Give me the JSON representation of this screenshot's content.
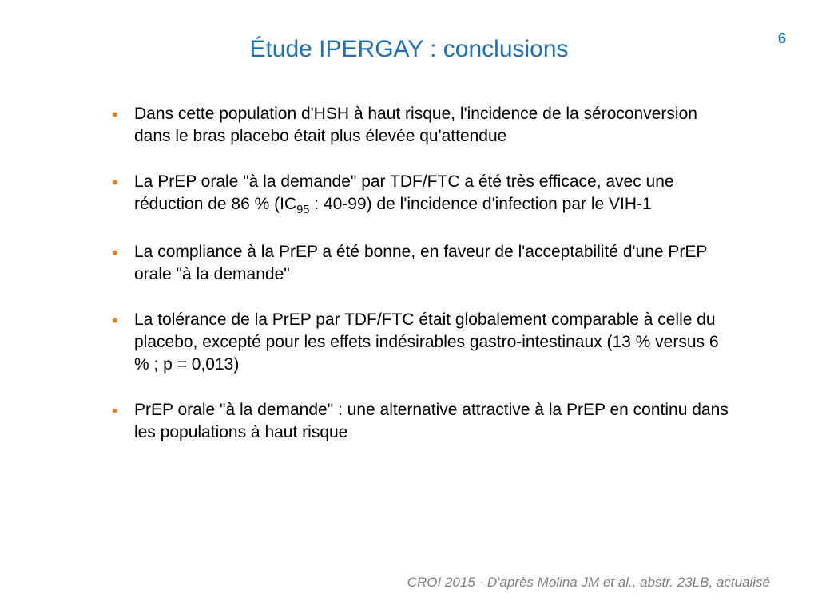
{
  "page_number": "6",
  "title": "Étude IPERGAY : conclusions",
  "colors": {
    "title": "#1f6fb5",
    "page_number": "#1f6fb5",
    "bullet_marker": "#e98024",
    "body_text": "#000000",
    "citation": "#808080",
    "background": "#ffffff"
  },
  "typography": {
    "title_fontsize": 30,
    "body_fontsize": 21,
    "citation_fontsize": 17,
    "page_number_fontsize": 18
  },
  "bullets": [
    "Dans cette population d'HSH à haut risque, l'incidence de la séroconversion dans le bras placebo était plus élevée qu'attendue",
    "La PrEP orale \"à la demande\" par TDF/FTC a été très efficace, avec une réduction de 86 % (IC₉₅ : 40-99) de l'incidence d'infection par le VIH-1",
    "La compliance à la PrEP a été bonne, en faveur de l'acceptabilité d'une  PrEP orale \"à la demande\"",
    "La tolérance de la PrEP par TDF/FTC était globalement comparable à celle du placebo, excepté pour les effets indésirables gastro-intestinaux (13 % versus 6 % ; p = 0,013)",
    "PrEP orale \"à la demande\" : une alternative attractive à la PrEP en continu dans les populations à haut risque"
  ],
  "citation": "CROI 2015 - D'après Molina JM et al., abstr. 23LB, actualisé"
}
